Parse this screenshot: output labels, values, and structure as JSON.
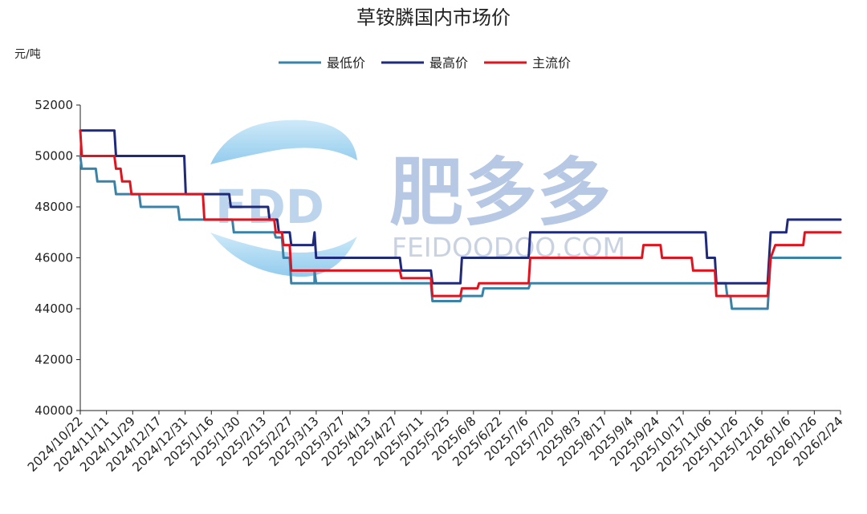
{
  "chart_data": {
    "type": "line",
    "title": "草铵膦国内市场价",
    "ylabel": "元/吨",
    "ylim": [
      40000,
      52000
    ],
    "yticks": [
      40000,
      42000,
      44000,
      46000,
      48000,
      50000,
      52000
    ],
    "xlim": [
      "2024-10-22",
      "2026-02-24"
    ],
    "xtick_labels": [
      "2024/10/22",
      "2024/11/11",
      "2024/11/29",
      "2024/12/17",
      "2024/12/31",
      "2025/1/16",
      "2025/1/30",
      "2025/2/13",
      "2025/2/27",
      "2025/3/13",
      "2025/3/27",
      "2025/4/13",
      "2025/4/27",
      "2025/5/11",
      "2025/5/25",
      "2025/6/8",
      "2025/6/22",
      "2025/7/6",
      "2025/7/20",
      "2025/8/3",
      "2025/8/17",
      "2025/9/4",
      "2025/9/24",
      "2025/10/17",
      "2025/11/06",
      "2025/11/26",
      "2025/12/16",
      "2026/1/6",
      "2026/1/26",
      "2026/2/24"
    ],
    "legend_position": "top-center",
    "grid": false,
    "colors": {
      "low": "#3a83a8",
      "high": "#1f2a7a",
      "main": "#e0141e"
    },
    "series": [
      {
        "name": "最低价",
        "key": "low",
        "points": [
          [
            "2024-10-22",
            50000
          ],
          [
            "2024-10-23",
            49500
          ],
          [
            "2024-11-01",
            49500
          ],
          [
            "2024-11-02",
            49000
          ],
          [
            "2024-11-13",
            49000
          ],
          [
            "2024-11-14",
            48500
          ],
          [
            "2024-11-29",
            48500
          ],
          [
            "2024-11-30",
            48000
          ],
          [
            "2024-12-24",
            48000
          ],
          [
            "2024-12-25",
            47500
          ],
          [
            "2025-01-28",
            47500
          ],
          [
            "2025-01-29",
            47000
          ],
          [
            "2025-02-24",
            47000
          ],
          [
            "2025-02-25",
            46800
          ],
          [
            "2025-03-01",
            46800
          ],
          [
            "2025-03-02",
            46000
          ],
          [
            "2025-03-06",
            46000
          ],
          [
            "2025-03-07",
            45000
          ],
          [
            "2025-03-22",
            45000
          ],
          [
            "2025-03-22",
            45500
          ],
          [
            "2025-03-23",
            45000
          ],
          [
            "2025-06-05",
            45000
          ],
          [
            "2025-06-06",
            44300
          ],
          [
            "2025-06-24",
            44300
          ],
          [
            "2025-06-25",
            44500
          ],
          [
            "2025-07-08",
            44500
          ],
          [
            "2025-07-09",
            44800
          ],
          [
            "2025-08-07",
            44800
          ],
          [
            "2025-08-08",
            45000
          ],
          [
            "2025-12-12",
            45000
          ],
          [
            "2025-12-13",
            44500
          ],
          [
            "2025-12-15",
            44500
          ],
          [
            "2025-12-16",
            44000
          ],
          [
            "2026-01-08",
            44000
          ],
          [
            "2026-01-10",
            46000
          ],
          [
            "2026-02-24",
            46000
          ]
        ]
      },
      {
        "name": "最高价",
        "key": "high",
        "points": [
          [
            "2024-10-22",
            51000
          ],
          [
            "2024-11-13",
            51000
          ],
          [
            "2024-11-14",
            50000
          ],
          [
            "2024-12-28",
            50000
          ],
          [
            "2024-12-29",
            48500
          ],
          [
            "2025-01-26",
            48500
          ],
          [
            "2025-01-27",
            48000
          ],
          [
            "2025-02-20",
            48000
          ],
          [
            "2025-02-21",
            47500
          ],
          [
            "2025-02-26",
            47500
          ],
          [
            "2025-02-27",
            47000
          ],
          [
            "2025-03-06",
            47000
          ],
          [
            "2025-03-07",
            46500
          ],
          [
            "2025-03-21",
            46500
          ],
          [
            "2025-03-22",
            47000
          ],
          [
            "2025-03-23",
            46000
          ],
          [
            "2025-05-16",
            46000
          ],
          [
            "2025-05-17",
            45500
          ],
          [
            "2025-06-05",
            45500
          ],
          [
            "2025-06-06",
            45000
          ],
          [
            "2025-06-24",
            45000
          ],
          [
            "2025-06-25",
            46000
          ],
          [
            "2025-08-07",
            46000
          ],
          [
            "2025-08-08",
            47000
          ],
          [
            "2025-11-29",
            47000
          ],
          [
            "2025-11-30",
            46000
          ],
          [
            "2025-12-05",
            46000
          ],
          [
            "2025-12-06",
            45000
          ],
          [
            "2026-01-08",
            45000
          ],
          [
            "2026-01-10",
            47000
          ],
          [
            "2026-01-20",
            47000
          ],
          [
            "2026-01-21",
            47500
          ],
          [
            "2026-02-24",
            47500
          ]
        ]
      },
      {
        "name": "主流价",
        "key": "main",
        "points": [
          [
            "2024-10-22",
            51000
          ],
          [
            "2024-10-23",
            50000
          ],
          [
            "2024-11-13",
            50000
          ],
          [
            "2024-11-14",
            49500
          ],
          [
            "2024-11-17",
            49500
          ],
          [
            "2024-11-18",
            49000
          ],
          [
            "2024-11-23",
            49000
          ],
          [
            "2024-11-24",
            48500
          ],
          [
            "2025-01-09",
            48500
          ],
          [
            "2025-01-10",
            47500
          ],
          [
            "2025-02-24",
            47500
          ],
          [
            "2025-02-25",
            47000
          ],
          [
            "2025-03-01",
            47000
          ],
          [
            "2025-03-02",
            46500
          ],
          [
            "2025-03-06",
            46500
          ],
          [
            "2025-03-07",
            45500
          ],
          [
            "2025-05-16",
            45500
          ],
          [
            "2025-05-17",
            45200
          ],
          [
            "2025-06-05",
            45200
          ],
          [
            "2025-06-06",
            44500
          ],
          [
            "2025-06-24",
            44500
          ],
          [
            "2025-06-25",
            44800
          ],
          [
            "2025-07-05",
            44800
          ],
          [
            "2025-07-06",
            45000
          ],
          [
            "2025-08-07",
            45000
          ],
          [
            "2025-08-08",
            46000
          ],
          [
            "2025-10-19",
            46000
          ],
          [
            "2025-10-20",
            46500
          ],
          [
            "2025-10-31",
            46500
          ],
          [
            "2025-11-01",
            46000
          ],
          [
            "2025-11-20",
            46000
          ],
          [
            "2025-11-21",
            45500
          ],
          [
            "2025-12-05",
            45500
          ],
          [
            "2025-12-06",
            44500
          ],
          [
            "2026-01-08",
            44500
          ],
          [
            "2026-01-10",
            46000
          ],
          [
            "2026-01-13",
            46500
          ],
          [
            "2026-01-31",
            46500
          ],
          [
            "2026-02-01",
            47000
          ],
          [
            "2026-02-24",
            47000
          ]
        ]
      }
    ]
  },
  "watermark": {
    "logo_text": "FDD",
    "brand_cn": "肥多多",
    "brand_en": "FEIDOODOO.COM"
  }
}
